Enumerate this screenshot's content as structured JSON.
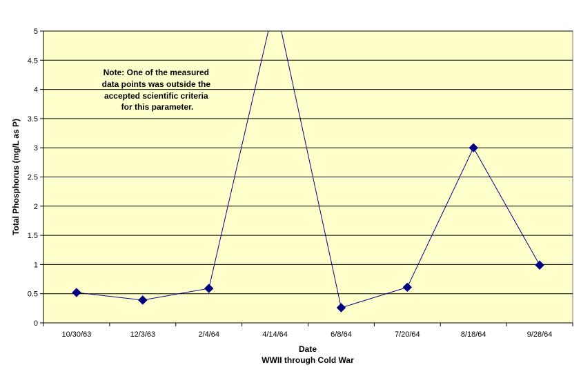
{
  "chart_data": {
    "type": "line",
    "xlabel": "Date",
    "xlabel_sub": "WWII through Cold War",
    "ylabel": "Total Phosphorus (mg/L as P)",
    "categories": [
      "10/30/63",
      "12/3/63",
      "2/4/64",
      "4/14/64",
      "6/8/64",
      "7/20/64",
      "8/18/64",
      "9/28/64"
    ],
    "series": [
      {
        "values": [
          0.52,
          0.39,
          0.59,
          5.5,
          0.26,
          0.61,
          3.0,
          0.99
        ]
      }
    ],
    "ylim": [
      0,
      5
    ],
    "yticks": [
      "0",
      "0.5",
      "1",
      "1.5",
      "2",
      "2.5",
      "3",
      "3.5",
      "4",
      "4.5",
      "5"
    ],
    "grid": "horizontal",
    "clipped_points": [
      "4/14/64"
    ],
    "annotation": {
      "lines": [
        "Note:  One of the measured",
        "data points was outside the",
        "accepted scientific criteria",
        "for this parameter."
      ]
    },
    "colors": {
      "plot_background": "#FFFFCC",
      "line": "#000080",
      "marker": "#000080",
      "grid": "#000000"
    }
  }
}
